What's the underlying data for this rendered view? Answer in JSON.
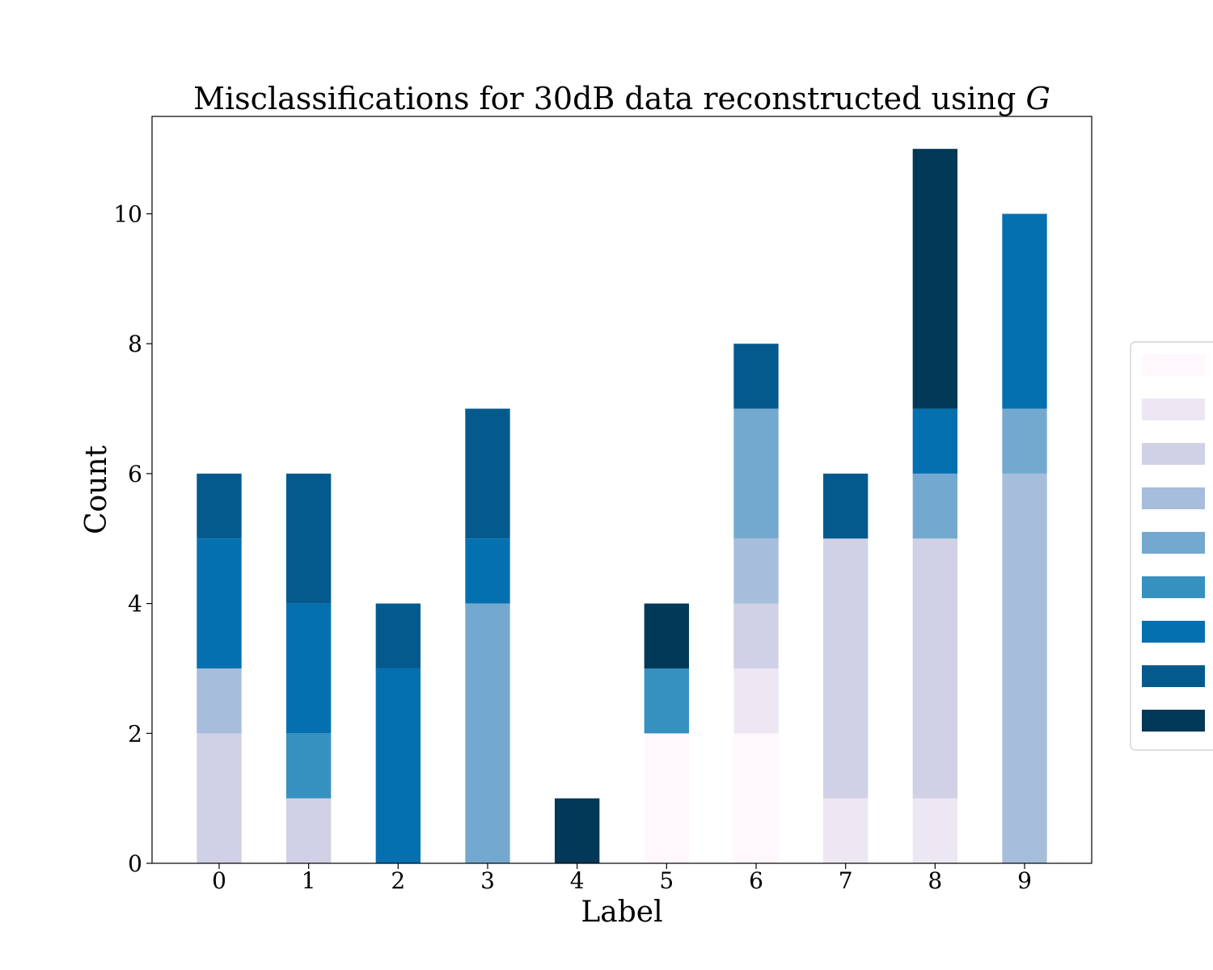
{
  "chart_data": {
    "type": "bar",
    "stacked": true,
    "title": "Misclassifications for 30dB data reconstructed using ",
    "title_italic": "G",
    "xlabel": "Label",
    "ylabel": "Count",
    "categories": [
      "0",
      "1",
      "2",
      "3",
      "4",
      "5",
      "6",
      "7",
      "8",
      "9"
    ],
    "ylim": [
      0,
      11.5
    ],
    "yticks": [
      0,
      2,
      4,
      6,
      8,
      10
    ],
    "grid": false,
    "legend": {
      "placement": "right",
      "show_names": false
    },
    "series": [
      {
        "color": "#fff7fb",
        "values": [
          0,
          0,
          0,
          0,
          0,
          2,
          2,
          0,
          0,
          0
        ]
      },
      {
        "color": "#ece7f2",
        "values": [
          0,
          0,
          0,
          0,
          0,
          0,
          1,
          1,
          1,
          0
        ]
      },
      {
        "color": "#d0d1e6",
        "values": [
          2,
          1,
          0,
          0,
          0,
          0,
          1,
          4,
          4,
          0
        ]
      },
      {
        "color": "#a6bddb",
        "values": [
          1,
          0,
          0,
          0,
          0,
          0,
          1,
          0,
          0,
          6
        ]
      },
      {
        "color": "#74a9cf",
        "values": [
          0,
          0,
          0,
          4,
          0,
          0,
          2,
          0,
          1,
          1
        ]
      },
      {
        "color": "#3690c0",
        "values": [
          0,
          1,
          0,
          0,
          0,
          1,
          0,
          0,
          0,
          0
        ]
      },
      {
        "color": "#0570b0",
        "values": [
          2,
          2,
          3,
          1,
          0,
          0,
          0,
          0,
          1,
          3
        ]
      },
      {
        "color": "#045a8d",
        "values": [
          1,
          2,
          1,
          2,
          0,
          0,
          1,
          1,
          0,
          0
        ]
      },
      {
        "color": "#023858",
        "values": [
          0,
          0,
          0,
          0,
          1,
          1,
          0,
          0,
          4,
          0
        ]
      }
    ]
  }
}
